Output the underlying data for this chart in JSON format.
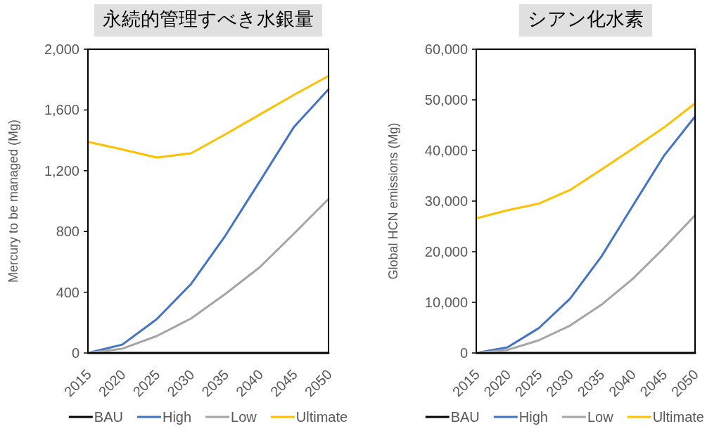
{
  "chart_data": [
    {
      "type": "line",
      "title": "永続的管理すべき水銀量",
      "ylabel": "Mercury to be managed (Mg)",
      "categories": [
        "2015",
        "2020",
        "2025",
        "2030",
        "2035",
        "2040",
        "2045",
        "2050"
      ],
      "ylim": [
        0,
        2000
      ],
      "yticks": [
        0,
        400,
        800,
        {
          "value": 1200,
          "label": "1,200"
        },
        {
          "value": 1600,
          "label": "1,600"
        },
        {
          "value": 2000,
          "label": "2,000"
        }
      ],
      "legend": "bottom",
      "grid": false,
      "series": [
        {
          "name": "BAU",
          "color": "#000000",
          "values": [
            0,
            0,
            0,
            0,
            0,
            0,
            0,
            0
          ]
        },
        {
          "name": "High",
          "color": "#4472c4",
          "values": [
            0,
            55,
            222,
            454,
            773,
            1130,
            1490,
            1736
          ]
        },
        {
          "name": "Low",
          "color": "#a5a5a5",
          "values": [
            0,
            28,
            111,
            227,
            389,
            565,
            787,
            1014
          ]
        },
        {
          "name": "Ultimate",
          "color": "#ffc000",
          "values": [
            1390,
            1340,
            1287,
            1315,
            1440,
            1570,
            1700,
            1824
          ]
        }
      ]
    },
    {
      "type": "line",
      "title": "シアン化水素",
      "ylabel": "Global HCN emissions (Mg)",
      "categories": [
        "2015",
        "2020",
        "2025",
        "2030",
        "2035",
        "2040",
        "2045",
        "2050"
      ],
      "ylim": [
        0,
        60000
      ],
      "yticks": [
        0,
        {
          "value": 10000,
          "label": "10,000"
        },
        {
          "value": 20000,
          "label": "20,000"
        },
        {
          "value": 30000,
          "label": "30,000"
        },
        {
          "value": 40000,
          "label": "40,000"
        },
        {
          "value": 50000,
          "label": "50,000"
        },
        {
          "value": 60000,
          "label": "60,000"
        }
      ],
      "legend": "bottom",
      "grid": false,
      "series": [
        {
          "name": "BAU",
          "color": "#000000",
          "values": [
            0,
            0,
            0,
            0,
            0,
            0,
            0,
            0
          ]
        },
        {
          "name": "High",
          "color": "#4472c4",
          "values": [
            0,
            1100,
            4900,
            10700,
            19000,
            29000,
            38900,
            46700
          ]
        },
        {
          "name": "Low",
          "color": "#a5a5a5",
          "values": [
            0,
            600,
            2500,
            5400,
            9500,
            14600,
            20700,
            27200
          ]
        },
        {
          "name": "Ultimate",
          "color": "#ffc000",
          "values": [
            26600,
            28200,
            29500,
            32200,
            36200,
            40300,
            44500,
            49300
          ]
        }
      ]
    }
  ]
}
